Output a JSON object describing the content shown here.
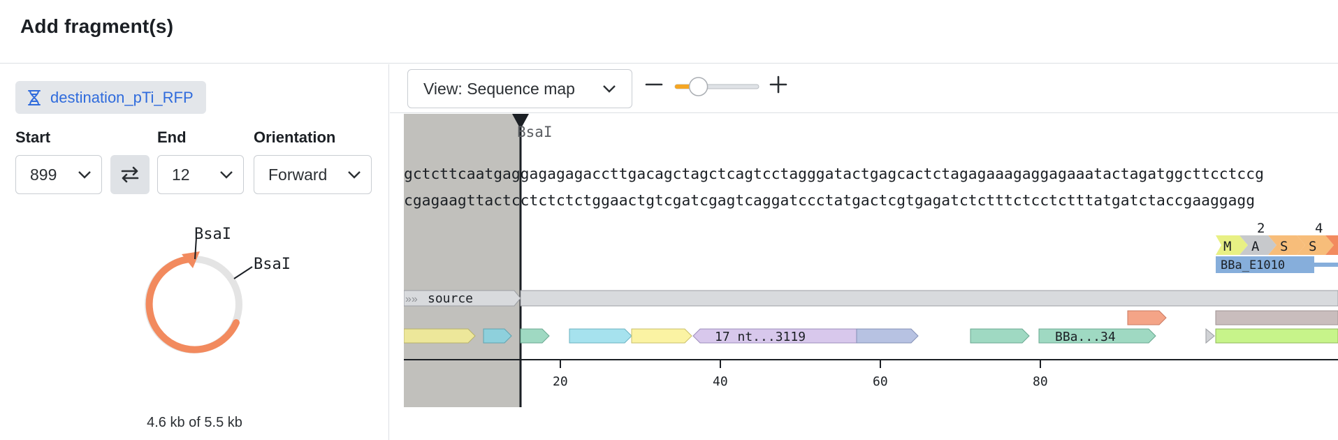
{
  "header": {
    "title": "Add fragment(s)"
  },
  "fragment": {
    "name": "destination_pTi_RFP",
    "start_label": "Start",
    "end_label": "End",
    "orientation_label": "Orientation",
    "start_value": "899",
    "end_value": "12",
    "orientation_value": "Forward",
    "enzymes": [
      "BsaI",
      "BsaI"
    ],
    "size_text": "4.6 kb of 5.5 kb"
  },
  "viewer": {
    "view_label": "View: Sequence map",
    "zoom_level_fraction": 0.28,
    "cut_label": "BsaI",
    "top_strand": "gctcttcaatgaggagagagaccttgacagctagctcagtcctagggatactgagcactctagagaaagaggagaaatactagatggcttcctccg",
    "bottom_strand": "cgagaagttactcctctctctggaactgtcgatcgagtcaggatccctatgactcgtgagatctctttctcctctttatgatctaccgaaggagg",
    "aa_numbers": [
      "2",
      "4"
    ],
    "amino_acids": [
      "M",
      "A",
      "S",
      "S"
    ],
    "feature_bba_e1010": "BBa_E1010",
    "source_label": "source",
    "feature_17nt": "17 nt...3119",
    "feature_bba34": "BBa...34",
    "ticks": [
      "20",
      "40",
      "60",
      "80"
    ],
    "colors": {
      "accent": "#2f6bdc",
      "selection_shade": "#c1c0bc",
      "circle_selected": "#f28a5e",
      "circle_unselected": "#e4e4e4"
    }
  }
}
